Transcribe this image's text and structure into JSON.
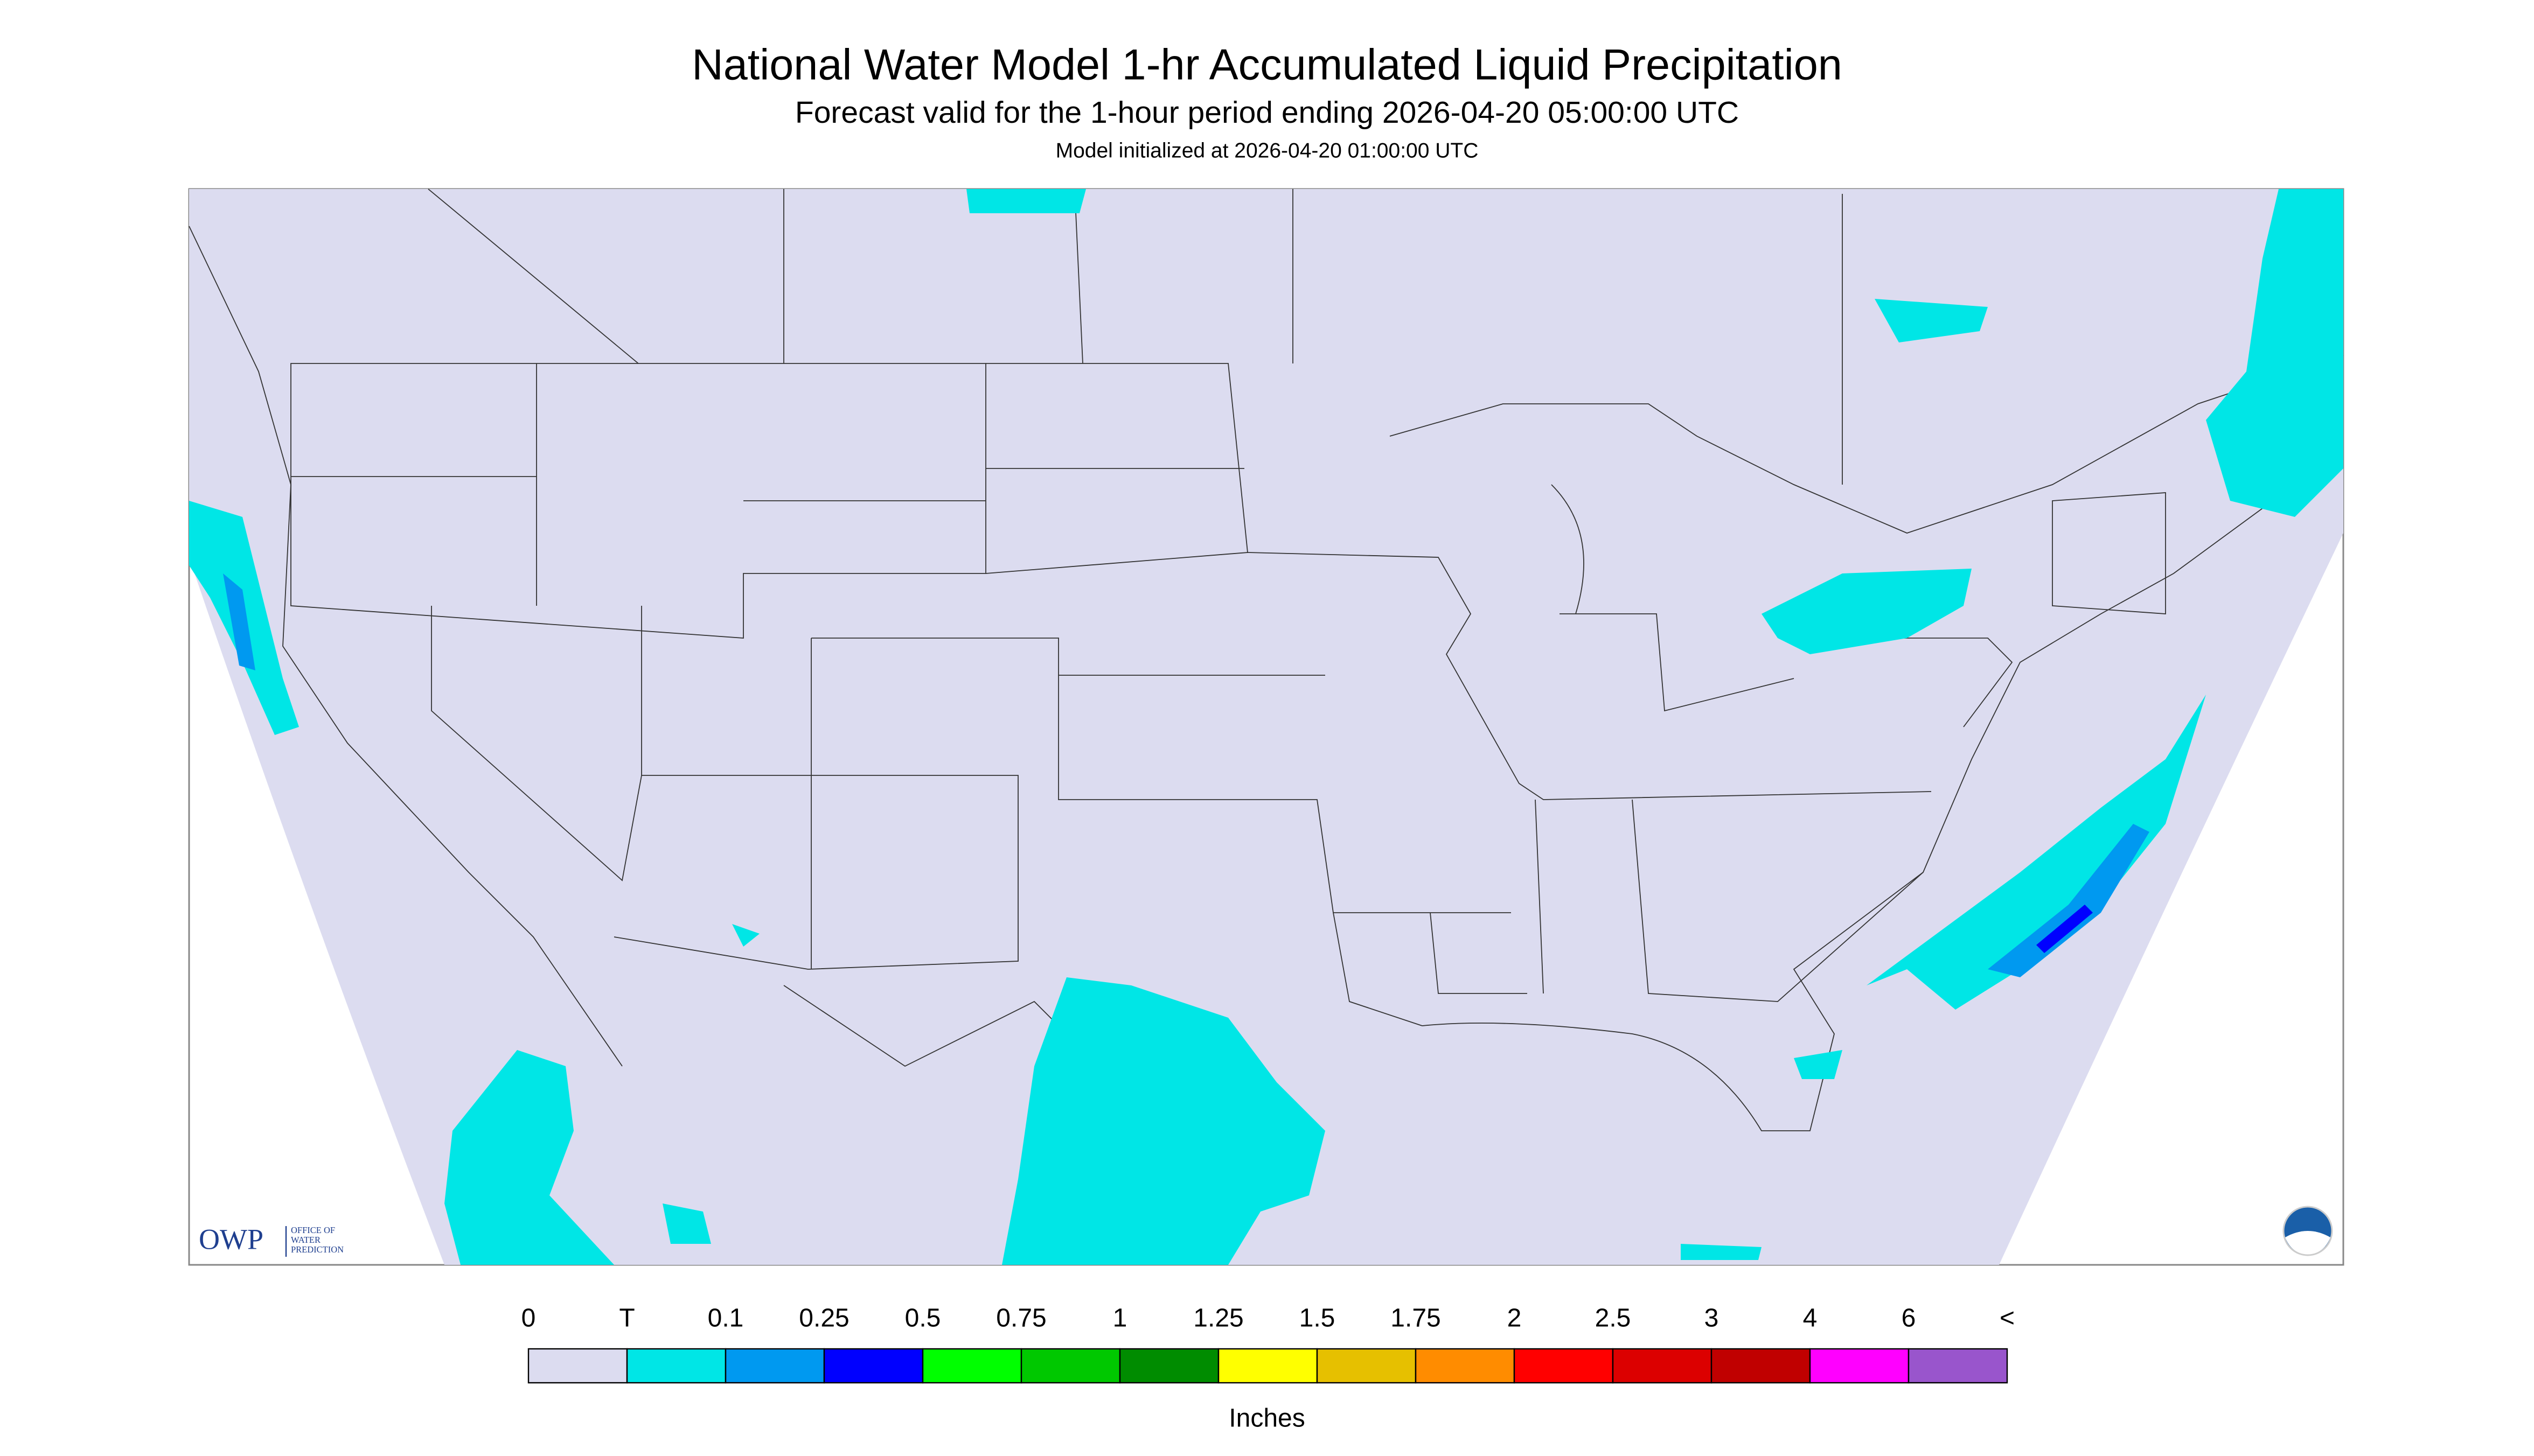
{
  "header": {
    "title": "National Water Model 1-hr Accumulated Liquid Precipitation",
    "subtitle": "Forecast valid for the 1-hour period ending 2026-04-20 05:00:00 UTC",
    "initialized": "Model initialized at 2026-04-20 01:00:00 UTC"
  },
  "legend": {
    "labels": [
      "0",
      "T",
      "0.1",
      "0.25",
      "0.5",
      "0.75",
      "1",
      "1.25",
      "1.5",
      "1.75",
      "2",
      "2.5",
      "3",
      "4",
      "6",
      "<"
    ],
    "colors": [
      "#dcdcf0",
      "#00e6e6",
      "#0099f0",
      "#0000ff",
      "#00ff00",
      "#00c800",
      "#008c00",
      "#ffff00",
      "#e6c000",
      "#ff8c00",
      "#ff0000",
      "#dc0000",
      "#c00000",
      "#ff00ff",
      "#9955cc"
    ],
    "unit": "Inches"
  },
  "logo": {
    "text": "OWP",
    "lines": [
      "OFFICE OF",
      "WATER",
      "PREDICTION"
    ]
  }
}
